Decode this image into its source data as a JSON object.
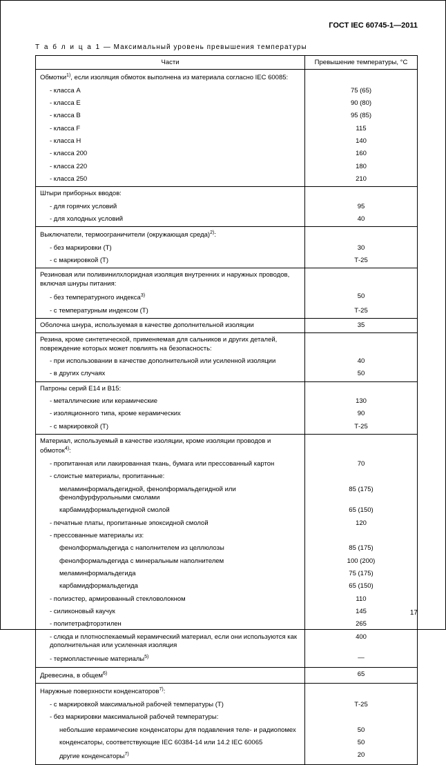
{
  "header": "ГОСТ IEC 60745-1—2011",
  "caption_prefix": "Т а б л и ц а 1",
  "caption_rest": " — Максимальный уровень превышения температуры",
  "col_parts": "Части",
  "col_temp": "Превышение температуры, °С",
  "page_num": "17",
  "groups": [
    {
      "rows": [
        {
          "p": "Обмотки<sup>1)</sup>, если изоляция обмоток выполнена из материала согласно IEC 60085:",
          "v": "",
          "ind": 0
        },
        {
          "p": "- класса А",
          "v": "75 (65)",
          "ind": 1
        },
        {
          "p": "- класса Е",
          "v": "90 (80)",
          "ind": 1
        },
        {
          "p": "- класса В",
          "v": "95 (85)",
          "ind": 1
        },
        {
          "p": "- класса F",
          "v": "115",
          "ind": 1
        },
        {
          "p": "- класса Н",
          "v": "140",
          "ind": 1
        },
        {
          "p": "- класса 200",
          "v": "160",
          "ind": 1
        },
        {
          "p": "- класса 220",
          "v": "180",
          "ind": 1
        },
        {
          "p": "- класса 250",
          "v": "210",
          "ind": 1
        }
      ]
    },
    {
      "rows": [
        {
          "p": "Штыри приборных вводов:",
          "v": "",
          "ind": 0
        },
        {
          "p": "- для горячих условий",
          "v": "95",
          "ind": 1
        },
        {
          "p": "- для холодных условий",
          "v": "40",
          "ind": 1
        }
      ]
    },
    {
      "rows": [
        {
          "p": "Выключатели, термоограничители (окружающая среда)<sup>2)</sup>:",
          "v": "",
          "ind": 0
        },
        {
          "p": "- без маркировки (Т)",
          "v": "30",
          "ind": 1
        },
        {
          "p": "- с маркировкой (Т)",
          "v": "Т-25",
          "ind": 1
        }
      ]
    },
    {
      "rows": [
        {
          "p": "Резиновая или поливинилхлоридная изоляция внутренних и наружных проводов, включая шнуры питания:",
          "v": "",
          "ind": 0
        },
        {
          "p": "- без температурного индекса<sup>3)</sup>",
          "v": "50",
          "ind": 1
        },
        {
          "p": "- с температурным индексом (Т)",
          "v": "Т-25",
          "ind": 1
        }
      ]
    },
    {
      "rows": [
        {
          "p": "Оболочка шнура, используемая в качестве дополнительной изоляции",
          "v": "35",
          "ind": 0
        }
      ]
    },
    {
      "rows": [
        {
          "p": "Резина, кроме синтетической, применяемая для сальников и других деталей, повреждение которых может повлиять на безопасность:",
          "v": "",
          "ind": 0
        },
        {
          "p": "- при использовании в качестве дополнительной или усиленной изоляции",
          "v": "40",
          "ind": 1
        },
        {
          "p": "- в других случаях",
          "v": "50",
          "ind": 1
        }
      ]
    },
    {
      "rows": [
        {
          "p": "Патроны серий Е14 и В15:",
          "v": "",
          "ind": 0
        },
        {
          "p": "- металлические или керамические",
          "v": "130",
          "ind": 1
        },
        {
          "p": "- изоляционного типа, кроме керамических",
          "v": "90",
          "ind": 1
        },
        {
          "p": "- с маркировкой (Т)",
          "v": "Т-25",
          "ind": 1
        }
      ]
    },
    {
      "rows": [
        {
          "p": "Материал, используемый в качестве изоляции, кроме изоляции проводов и обмоток<sup>4)</sup>:",
          "v": "",
          "ind": 0
        },
        {
          "p": "- пропитанная или лакированная ткань, бумага или прессованный картон",
          "v": "70",
          "ind": 1
        },
        {
          "p": "- слоистые материалы, пропитанные:",
          "v": "",
          "ind": 1
        },
        {
          "p": "меламинформальдегидной, фенолформальдегидной или фенолфурфурольными смолами",
          "v": "85 (175)",
          "ind": 2
        },
        {
          "p": "карбамидформальдегидной смолой",
          "v": "65 (150)",
          "ind": 2
        },
        {
          "p": "- печатные платы, пропитанные эпоксидной смолой",
          "v": "120",
          "ind": 1
        },
        {
          "p": "- прессованные материалы из:",
          "v": "",
          "ind": 1
        },
        {
          "p": "фенолформальдегида с наполнителем из целлюлозы",
          "v": "85 (175)",
          "ind": 2
        },
        {
          "p": "фенолформальдегида с минеральным наполнителем",
          "v": "100 (200)",
          "ind": 2
        },
        {
          "p": "меламинформальдегида",
          "v": "75 (175)",
          "ind": 2
        },
        {
          "p": "карбамидформальдегида",
          "v": "65 (150)",
          "ind": 2
        },
        {
          "p": "- полиэстер, армированный стекловолокном",
          "v": "110",
          "ind": 1
        },
        {
          "p": "- силиконовый каучук",
          "v": "145",
          "ind": 1
        },
        {
          "p": "- политетрафторэтилен",
          "v": "265",
          "ind": 1
        },
        {
          "p": "- слюда и плотноспекаемый керамический материал, если они используются как дополнительная или усиленная изоляция",
          "v": "400",
          "ind": 1
        },
        {
          "p": "- термопластичные материалы<sup>5)</sup>",
          "v": "—",
          "ind": 1
        }
      ]
    },
    {
      "rows": [
        {
          "p": "Древесина, в общем<sup>6)</sup>",
          "v": "65",
          "ind": 0
        }
      ]
    },
    {
      "rows": [
        {
          "p": "Наружные поверхности конденсаторов<sup>7)</sup>:",
          "v": "",
          "ind": 0
        },
        {
          "p": "- с маркировкой максимальной рабочей температуры (Т)",
          "v": "Т-25",
          "ind": 1
        },
        {
          "p": "- без маркировки максимальной рабочей температуры:",
          "v": "",
          "ind": 1
        },
        {
          "p": "небольшие керамические конденсаторы для подавления теле- и радиопомех",
          "v": "50",
          "ind": 2
        },
        {
          "p": "конденсаторы, соответствующие IEC 60384-14 или 14.2 IEC 60065",
          "v": "50",
          "ind": 2
        },
        {
          "p": "другие конденсаторы<sup>7)</sup>",
          "v": "20",
          "ind": 2
        }
      ]
    }
  ]
}
